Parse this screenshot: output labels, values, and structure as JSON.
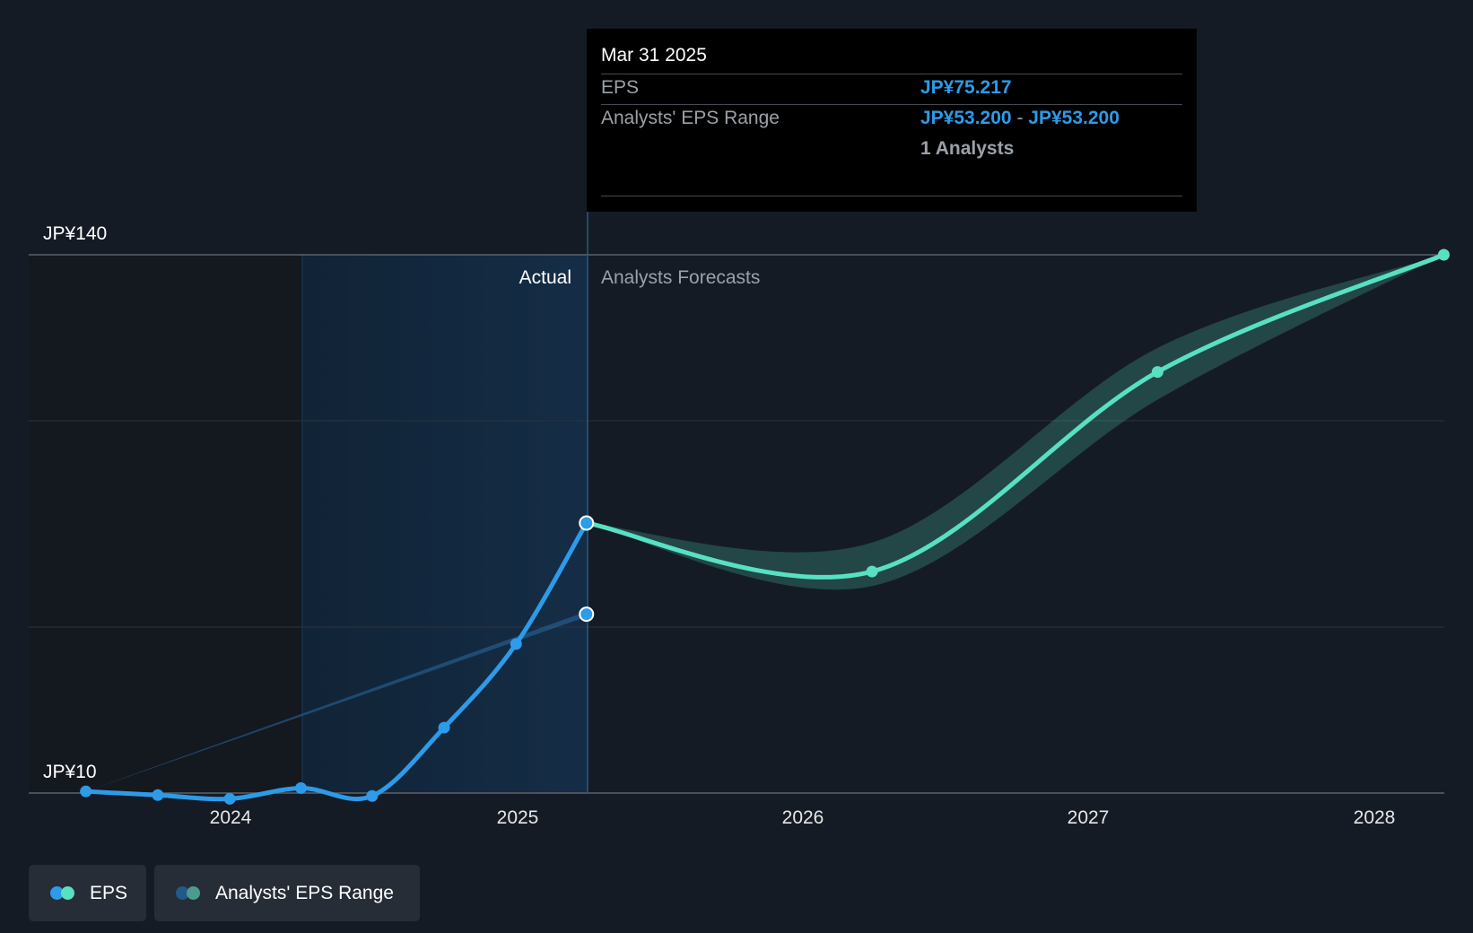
{
  "chart_data": {
    "type": "line",
    "y_axis": {
      "unit_prefix": "JP¥",
      "tick_labels": [
        "JP¥140",
        "JP¥10"
      ],
      "ylim": [
        10,
        140
      ]
    },
    "x_axis": {
      "tick_labels": [
        "2024",
        "2025",
        "2026",
        "2027",
        "2028"
      ]
    },
    "regions": {
      "actual_label": "Actual",
      "forecast_label": "Analysts Forecasts"
    },
    "series": [
      {
        "name": "EPS",
        "color": "#2d9be8",
        "kind": "actual",
        "points": [
          {
            "x": "2023-06-30",
            "y": 10.4
          },
          {
            "x": "2023-09-30",
            "y": 9.5
          },
          {
            "x": "2023-12-31",
            "y": 8.6
          },
          {
            "x": "2024-03-31",
            "y": 11.2
          },
          {
            "x": "2024-06-30",
            "y": 9.3
          },
          {
            "x": "2024-09-30",
            "y": 25.8
          },
          {
            "x": "2024-12-31",
            "y": 46.0
          },
          {
            "x": "2025-03-31",
            "y": 75.217
          }
        ]
      },
      {
        "name": "EPS",
        "color": "#58e0c3",
        "kind": "forecast",
        "points": [
          {
            "x": "2025-03-31",
            "y": 75.217
          },
          {
            "x": "2026-03-31",
            "y": 63.5
          },
          {
            "x": "2027-03-31",
            "y": 111.7
          },
          {
            "x": "2028-03-31",
            "y": 140
          }
        ]
      },
      {
        "name": "Analysts' EPS Range",
        "color": "#2d9be8",
        "kind": "past_estimate",
        "points": [
          {
            "x": "2023-06-30",
            "y": 10.4
          },
          {
            "x": "2025-03-31",
            "y": 53.2
          }
        ]
      }
    ],
    "forecast_range": {
      "name": "Analysts' EPS Range",
      "color": "#58e0c3",
      "low": [
        {
          "x": "2025-03-31",
          "y": 75.217
        },
        {
          "x": "2026-03-31",
          "y": 60.0
        },
        {
          "x": "2027-03-31",
          "y": 105.0
        },
        {
          "x": "2028-03-31",
          "y": 140
        }
      ],
      "high": [
        {
          "x": "2025-03-31",
          "y": 75.217
        },
        {
          "x": "2026-03-31",
          "y": 70.5
        },
        {
          "x": "2027-03-31",
          "y": 117.5
        },
        {
          "x": "2028-03-31",
          "y": 140
        }
      ]
    },
    "grid": true,
    "legend": {
      "placement": "bottom-left",
      "items": [
        "EPS",
        "Analysts' EPS Range"
      ]
    }
  },
  "tooltip": {
    "date": "Mar 31 2025",
    "eps_label": "EPS",
    "eps_value": "JP¥75.217",
    "range_label": "Analysts' EPS Range",
    "range_low": "JP¥53.200",
    "range_separator": "-",
    "range_high": "JP¥53.200",
    "analysts_count": "1 Analysts"
  },
  "legend": {
    "eps_label": "EPS",
    "range_label": "Analysts' EPS Range",
    "colors": {
      "eps_past": "#2d9be8",
      "eps_forecast": "#58e0c3",
      "range_past": "#1f5b86",
      "range_forecast": "#4d9b90"
    }
  }
}
